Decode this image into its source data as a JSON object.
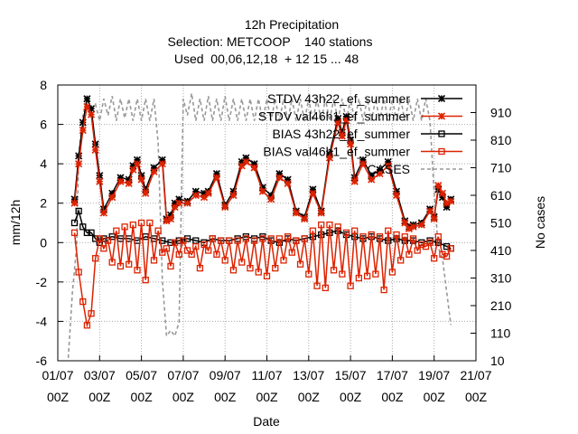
{
  "chart_data": {
    "type": "line",
    "title": [
      "12h Precipitation",
      "Selection: METCOOP    140 stations",
      "Used  00,06,12,18  + 12 15 ... 48"
    ],
    "xlabel": "Date",
    "ylabel": "mm/12h",
    "y2label": "No cases",
    "x_ticks": [
      {
        "day": 1,
        "line1": "01/07",
        "line2": "00Z"
      },
      {
        "day": 3,
        "line1": "03/07",
        "line2": "00Z"
      },
      {
        "day": 5,
        "line1": "05/07",
        "line2": "00Z"
      },
      {
        "day": 7,
        "line1": "07/07",
        "line2": "00Z"
      },
      {
        "day": 9,
        "line1": "09/07",
        "line2": "00Z"
      },
      {
        "day": 11,
        "line1": "11/07",
        "line2": "00Z"
      },
      {
        "day": 13,
        "line1": "13/07",
        "line2": "00Z"
      },
      {
        "day": 15,
        "line1": "15/07",
        "line2": "00Z"
      },
      {
        "day": 17,
        "line1": "17/07",
        "line2": "00Z"
      },
      {
        "day": 19,
        "line1": "19/07",
        "line2": "00Z"
      },
      {
        "day": 21,
        "line1": "21/07",
        "line2": "00Z"
      }
    ],
    "x_range_days": [
      1,
      21
    ],
    "ylim": [
      -6,
      8
    ],
    "y_ticks": [
      "-6",
      "-4",
      "-2",
      "0",
      "2",
      "4",
      "6",
      "8"
    ],
    "y2lim": [
      10,
      1010
    ],
    "y2_ticks": [
      "10",
      "110",
      "210",
      "310",
      "410",
      "510",
      "610",
      "710",
      "810",
      "910"
    ],
    "grid": true,
    "legend_position": "top-right",
    "series": [
      {
        "name": "STDV 43h22_ef_summer",
        "color": "#000000",
        "marker": "x-cross",
        "x": [
          1.8,
          2.0,
          2.2,
          2.4,
          2.6,
          2.8,
          3.0,
          3.2,
          3.6,
          4.0,
          4.4,
          4.6,
          4.8,
          5.0,
          5.2,
          5.6,
          6.0,
          6.2,
          6.4,
          6.6,
          6.8,
          7.2,
          7.6,
          8.0,
          8.2,
          8.6,
          9.0,
          9.4,
          9.8,
          10.0,
          10.4,
          10.8,
          11.2,
          11.6,
          12.0,
          12.4,
          12.8,
          13.2,
          13.6,
          14.0,
          14.4,
          14.6,
          14.8,
          15.0,
          15.2,
          15.6,
          16.0,
          16.4,
          16.8,
          17.2,
          17.6,
          17.8,
          18.0,
          18.4,
          18.8,
          19.0,
          19.2,
          19.4,
          19.6,
          19.8
        ],
        "y": [
          2.2,
          4.4,
          6.1,
          7.3,
          6.8,
          5.0,
          3.4,
          1.7,
          2.5,
          3.3,
          3.2,
          3.9,
          4.2,
          3.4,
          2.7,
          3.8,
          4.2,
          1.2,
          1.4,
          2.0,
          2.2,
          2.1,
          2.6,
          2.5,
          2.6,
          3.5,
          1.9,
          2.6,
          4.1,
          4.3,
          4.0,
          2.8,
          2.4,
          3.5,
          3.2,
          1.6,
          1.3,
          2.7,
          1.6,
          4.5,
          6.3,
          5.6,
          6.4,
          5.2,
          3.3,
          4.2,
          3.4,
          3.7,
          4.1,
          2.6,
          1.1,
          0.8,
          0.9,
          1.0,
          1.7,
          1.3,
          2.7,
          2.3,
          1.8,
          2.2
        ]
      },
      {
        "name": "STDV val46h1_ef_summer",
        "color": "#dd2200",
        "marker": "x-cross",
        "x": [
          1.8,
          2.0,
          2.2,
          2.4,
          2.6,
          2.8,
          3.0,
          3.2,
          3.6,
          4.0,
          4.4,
          4.6,
          4.8,
          5.0,
          5.2,
          5.6,
          6.0,
          6.2,
          6.4,
          6.6,
          6.8,
          7.2,
          7.6,
          8.0,
          8.2,
          8.6,
          9.0,
          9.4,
          9.8,
          10.0,
          10.4,
          10.8,
          11.2,
          11.6,
          12.0,
          12.4,
          12.8,
          13.2,
          13.6,
          14.0,
          14.4,
          14.6,
          14.8,
          15.0,
          15.2,
          15.6,
          16.0,
          16.4,
          16.8,
          17.2,
          17.6,
          17.8,
          18.0,
          18.4,
          18.8,
          19.0,
          19.2,
          19.4,
          19.6,
          19.8
        ],
        "y": [
          2.0,
          4.0,
          5.7,
          6.9,
          6.5,
          4.7,
          3.1,
          1.5,
          2.3,
          3.1,
          3.0,
          3.7,
          4.0,
          3.2,
          2.5,
          3.6,
          4.0,
          1.1,
          1.2,
          1.8,
          2.0,
          2.0,
          2.4,
          2.3,
          2.5,
          3.3,
          1.8,
          2.4,
          3.9,
          4.1,
          3.8,
          2.6,
          2.2,
          3.3,
          3.0,
          1.5,
          1.2,
          2.5,
          1.5,
          4.3,
          6.1,
          5.4,
          6.2,
          5.0,
          3.1,
          4.0,
          3.2,
          3.5,
          3.9,
          2.4,
          1.0,
          0.7,
          0.8,
          0.9,
          1.6,
          1.2,
          2.9,
          2.5,
          2.0,
          2.1
        ]
      },
      {
        "name": "BIAS 43h22_ef_summer",
        "color": "#000000",
        "marker": "open-square",
        "x": [
          1.8,
          2.0,
          2.2,
          2.4,
          2.6,
          2.8,
          3.0,
          3.2,
          3.6,
          4.0,
          4.4,
          4.8,
          5.2,
          5.6,
          6.0,
          6.4,
          6.8,
          7.2,
          7.6,
          8.0,
          8.4,
          8.8,
          9.2,
          9.6,
          10.0,
          10.4,
          10.8,
          11.2,
          11.6,
          12.0,
          12.4,
          12.8,
          13.2,
          13.6,
          14.0,
          14.4,
          14.8,
          15.2,
          15.6,
          16.0,
          16.4,
          16.8,
          17.2,
          17.6,
          18.0,
          18.4,
          18.8,
          19.2,
          19.6,
          19.8
        ],
        "y": [
          1.0,
          1.6,
          0.8,
          0.5,
          0.5,
          0.2,
          0.0,
          0.2,
          0.3,
          0.2,
          0.2,
          0.1,
          0.3,
          0.2,
          0.1,
          0.0,
          0.1,
          0.2,
          0.1,
          0.0,
          0.2,
          0.1,
          0.1,
          0.2,
          0.3,
          0.2,
          0.3,
          0.1,
          0.0,
          0.2,
          0.1,
          0.2,
          0.3,
          0.4,
          0.5,
          0.6,
          0.4,
          0.3,
          0.2,
          0.3,
          0.2,
          0.1,
          0.2,
          0.1,
          0.1,
          0.0,
          0.1,
          0.0,
          -0.2,
          -0.3
        ]
      },
      {
        "name": "BIAS val46h1_ef_summer",
        "color": "#dd2200",
        "marker": "open-square",
        "x": [
          1.8,
          2.0,
          2.2,
          2.4,
          2.6,
          2.8,
          3.0,
          3.2,
          3.4,
          3.6,
          3.8,
          4.0,
          4.2,
          4.4,
          4.6,
          4.8,
          5.0,
          5.2,
          5.4,
          5.6,
          5.8,
          6.0,
          6.2,
          6.4,
          6.6,
          6.8,
          7.0,
          7.2,
          7.4,
          7.6,
          7.8,
          8.0,
          8.2,
          8.4,
          8.6,
          8.8,
          9.0,
          9.2,
          9.4,
          9.6,
          9.8,
          10.0,
          10.2,
          10.4,
          10.6,
          10.8,
          11.0,
          11.2,
          11.4,
          11.6,
          11.8,
          12.0,
          12.2,
          12.4,
          12.6,
          12.8,
          13.0,
          13.2,
          13.4,
          13.6,
          13.8,
          14.0,
          14.2,
          14.4,
          14.6,
          14.8,
          15.0,
          15.2,
          15.4,
          15.6,
          15.8,
          16.0,
          16.2,
          16.4,
          16.6,
          16.8,
          17.0,
          17.2,
          17.4,
          17.6,
          17.8,
          18.0,
          18.2,
          18.4,
          18.6,
          18.8,
          19.0,
          19.2,
          19.4,
          19.6,
          19.8
        ],
        "y": [
          0.5,
          -1.5,
          -3.0,
          -4.2,
          -3.6,
          -0.8,
          0.2,
          -0.3,
          0.1,
          -1.0,
          0.6,
          -1.2,
          0.8,
          -1.1,
          0.9,
          -1.4,
          1.0,
          -1.9,
          1.0,
          -0.9,
          0.6,
          -0.5,
          -0.3,
          -1.2,
          0.0,
          -0.6,
          0.1,
          -0.4,
          -0.6,
          -0.2,
          -1.3,
          -0.1,
          -0.4,
          0.2,
          -0.6,
          0.1,
          -0.9,
          0.1,
          -1.4,
          0.1,
          -1.0,
          0.2,
          -1.3,
          0.1,
          -1.5,
          0.2,
          -1.7,
          0.2,
          -1.3,
          0.2,
          -0.9,
          0.3,
          -0.5,
          0.1,
          -1.1,
          0.2,
          -1.6,
          0.6,
          -2.2,
          0.9,
          -2.3,
          0.9,
          -1.4,
          0.8,
          -1.6,
          0.5,
          -2.2,
          0.6,
          -1.8,
          0.3,
          -1.7,
          0.4,
          -1.6,
          0.3,
          -2.4,
          0.6,
          -1.5,
          0.4,
          -0.9,
          0.3,
          -0.6,
          0.2,
          -0.4,
          -0.1,
          -0.2,
          0.0,
          -0.8,
          0.3,
          -0.6,
          -0.7,
          -0.3
        ]
      },
      {
        "name": "CASES",
        "color": "#999999",
        "dash": true,
        "axis": "y2",
        "x": [
          1.5,
          1.7,
          1.9,
          2.0,
          2.2,
          2.4,
          2.6,
          2.8,
          3.0,
          3.2,
          3.4,
          3.6,
          3.8,
          4.0,
          4.2,
          4.4,
          4.6,
          4.8,
          5.0,
          5.2,
          5.4,
          5.6,
          5.8,
          6.0,
          6.2,
          6.4,
          6.6,
          6.8,
          7.0,
          7.2,
          7.4,
          7.6,
          7.8,
          8.0,
          8.2,
          8.4,
          8.6,
          8.8,
          9.0,
          9.2,
          9.4,
          9.6,
          9.8,
          10.0,
          10.2,
          10.4,
          10.6,
          10.8,
          11.0,
          11.2,
          11.4,
          11.6,
          11.8,
          12.0,
          12.2,
          12.4,
          12.6,
          12.8,
          13.0,
          13.2,
          13.4,
          13.6,
          13.8,
          14.0,
          14.2,
          14.4,
          14.6,
          14.8,
          15.0,
          15.2,
          15.4,
          15.6,
          15.8,
          16.0,
          16.2,
          16.4,
          16.6,
          16.8,
          17.0,
          17.2,
          17.4,
          17.6,
          17.8,
          18.0,
          18.2,
          18.4,
          18.6,
          18.8,
          19.0,
          19.2,
          19.4,
          19.6,
          19.8
        ],
        "y": [
          20,
          260,
          420,
          760,
          900,
          960,
          920,
          940,
          880,
          960,
          900,
          970,
          880,
          960,
          890,
          960,
          880,
          960,
          880,
          960,
          880,
          960,
          800,
          300,
          100,
          120,
          100,
          150,
          960,
          900,
          980,
          880,
          960,
          880,
          970,
          880,
          960,
          880,
          970,
          880,
          960,
          880,
          960,
          880,
          960,
          880,
          960,
          880,
          960,
          880,
          960,
          880,
          960,
          880,
          960,
          880,
          960,
          880,
          960,
          880,
          960,
          880,
          960,
          880,
          960,
          880,
          960,
          880,
          960,
          880,
          960,
          880,
          960,
          880,
          960,
          880,
          960,
          880,
          960,
          880,
          960,
          880,
          960,
          880,
          960,
          880,
          960,
          880,
          620,
          420,
          380,
          260,
          140
        ]
      }
    ]
  }
}
